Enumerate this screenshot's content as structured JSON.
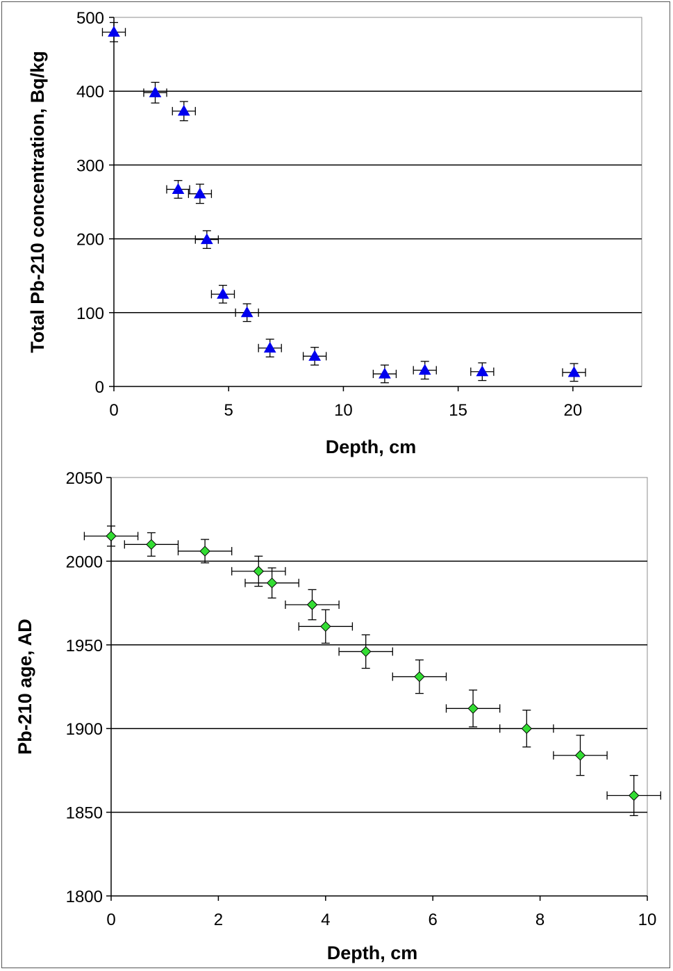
{
  "chart_data": [
    {
      "type": "scatter",
      "title": "",
      "xlabel": "Depth, cm",
      "ylabel": "Total Pb-210 concentration, Bq/kg",
      "xlim": [
        0,
        23
      ],
      "ylim": [
        0,
        500
      ],
      "xticks": [
        0,
        5,
        10,
        15,
        20
      ],
      "yticks": [
        0,
        100,
        200,
        300,
        400,
        500
      ],
      "grid": "horizontal",
      "marker": "triangle",
      "marker_color": "#0000ee",
      "points": [
        {
          "x": 0,
          "y": 480,
          "xerr": 0.5,
          "yerr": 13
        },
        {
          "x": 1.8,
          "y": 398,
          "xerr": 0.5,
          "yerr": 14
        },
        {
          "x": 3.05,
          "y": 373,
          "xerr": 0.5,
          "yerr": 13
        },
        {
          "x": 2.8,
          "y": 267,
          "xerr": 0.5,
          "yerr": 12
        },
        {
          "x": 3.75,
          "y": 261,
          "xerr": 0.5,
          "yerr": 13
        },
        {
          "x": 4.05,
          "y": 199,
          "xerr": 0.5,
          "yerr": 12
        },
        {
          "x": 4.75,
          "y": 125,
          "xerr": 0.5,
          "yerr": 12
        },
        {
          "x": 5.8,
          "y": 100,
          "xerr": 0.5,
          "yerr": 12
        },
        {
          "x": 6.8,
          "y": 52,
          "xerr": 0.5,
          "yerr": 12
        },
        {
          "x": 8.75,
          "y": 41,
          "xerr": 0.5,
          "yerr": 12
        },
        {
          "x": 11.8,
          "y": 17,
          "xerr": 0.5,
          "yerr": 12
        },
        {
          "x": 13.55,
          "y": 22,
          "xerr": 0.5,
          "yerr": 12
        },
        {
          "x": 16.05,
          "y": 20,
          "xerr": 0.5,
          "yerr": 12
        },
        {
          "x": 20.05,
          "y": 19,
          "xerr": 0.5,
          "yerr": 12
        }
      ]
    },
    {
      "type": "scatter",
      "title": "",
      "xlabel": "Depth, cm",
      "ylabel": "Pb-210 age, AD",
      "xlim": [
        0,
        10
      ],
      "ylim": [
        1800,
        2050
      ],
      "xticks": [
        0,
        2,
        4,
        6,
        8,
        10
      ],
      "yticks": [
        1800,
        1850,
        1900,
        1950,
        2000,
        2050
      ],
      "grid": "horizontal",
      "marker": "diamond",
      "marker_color": "#33dd33",
      "points": [
        {
          "x": 0,
          "y": 2015,
          "xerr": 0.5,
          "yerr": 6
        },
        {
          "x": 0.75,
          "y": 2010,
          "xerr": 0.5,
          "yerr": 7
        },
        {
          "x": 1.75,
          "y": 2006,
          "xerr": 0.5,
          "yerr": 7
        },
        {
          "x": 2.75,
          "y": 1994,
          "xerr": 0.5,
          "yerr": 9
        },
        {
          "x": 3.0,
          "y": 1987,
          "xerr": 0.5,
          "yerr": 9
        },
        {
          "x": 3.75,
          "y": 1974,
          "xerr": 0.5,
          "yerr": 9
        },
        {
          "x": 4.0,
          "y": 1961,
          "xerr": 0.5,
          "yerr": 10
        },
        {
          "x": 4.75,
          "y": 1946,
          "xerr": 0.5,
          "yerr": 10
        },
        {
          "x": 5.75,
          "y": 1931,
          "xerr": 0.5,
          "yerr": 10
        },
        {
          "x": 6.75,
          "y": 1912,
          "xerr": 0.5,
          "yerr": 11
        },
        {
          "x": 7.75,
          "y": 1900,
          "xerr": 0.5,
          "yerr": 11
        },
        {
          "x": 8.75,
          "y": 1884,
          "xerr": 0.5,
          "yerr": 12
        },
        {
          "x": 9.75,
          "y": 1860,
          "xerr": 0.5,
          "yerr": 12
        }
      ]
    }
  ]
}
